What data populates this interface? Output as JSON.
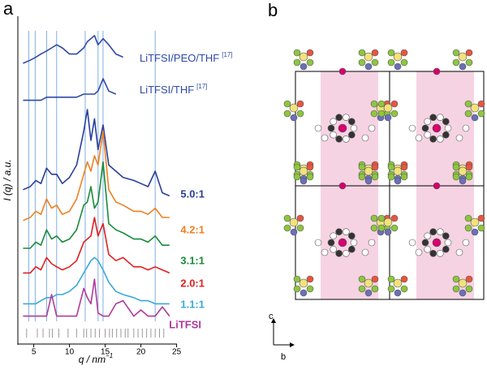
{
  "chart_data": {
    "type": "line",
    "panel_label": "a",
    "y_label": "I (q) / a.u.",
    "x_label": {
      "text": "q / nm",
      "superscript": "−1"
    },
    "x": [
      3.5,
      4.5,
      5.3,
      6,
      6.8,
      7.5,
      8.2,
      9,
      10,
      11,
      12,
      12.5,
      13,
      13.5,
      14,
      14.7,
      15.5,
      16.5,
      17.5,
      19,
      20,
      21,
      22,
      23,
      24
    ],
    "xlim": [
      3,
      25.5
    ],
    "xticks": [
      5,
      10,
      15,
      20,
      25
    ],
    "ylim": [
      0,
      100
    ],
    "reference_lines": {
      "color": "#7fb0e0",
      "x": [
        4.3,
        5.2,
        6.8,
        8.2,
        12.2,
        14,
        14.7,
        22
      ]
    },
    "reflections": {
      "color": "#999999",
      "x": [
        4,
        5.5,
        6.3,
        7.2,
        7.6,
        8.5,
        9.8,
        11,
        12,
        12.4,
        13,
        13.6,
        14.2,
        15,
        15.6,
        16,
        16.6,
        17.2,
        17.8,
        18.2,
        19,
        19.6,
        20.2,
        20.8,
        21.4,
        22,
        22.6,
        23.2
      ]
    },
    "series": [
      {
        "name": {
          "text": "LiTFSI/PEO/THF",
          "ref": "[17]"
        },
        "color": "#2f49a8",
        "values": [
          90,
          91,
          92,
          93,
          94,
          95,
          96,
          95,
          93,
          93,
          95,
          97,
          98,
          99,
          96,
          98,
          96,
          93,
          92,
          null,
          null,
          null,
          null,
          null,
          null
        ]
      },
      {
        "name": {
          "text": "LiTFSI/THF",
          "ref": "[17]"
        },
        "color": "#2f49a8",
        "values": [
          78,
          78,
          78,
          78,
          79,
          79,
          79,
          79,
          79,
          79,
          80,
          80,
          80,
          80,
          81,
          85,
          81,
          80,
          null,
          null,
          null,
          null,
          null,
          null,
          null
        ]
      },
      {
        "name": "5.0:1",
        "color": "#2a3f9a",
        "values": [
          49,
          50,
          52,
          51,
          56,
          54,
          54,
          51,
          53,
          57,
          68,
          75,
          65,
          72,
          62,
          70,
          57,
          55,
          53,
          52,
          51,
          50,
          55,
          48,
          47
        ]
      },
      {
        "name": "4.2:1",
        "color": "#f08020",
        "values": [
          39,
          40,
          42,
          41,
          46,
          43,
          44,
          41,
          42,
          46,
          54,
          58,
          55,
          60,
          57,
          68,
          49,
          45,
          44,
          42,
          42,
          41,
          43,
          40,
          40
        ]
      },
      {
        "name": "3.1:1",
        "color": "#1a8a3a",
        "values": [
          30,
          30,
          32,
          31,
          36,
          33,
          34,
          32,
          33,
          36,
          44,
          45,
          50,
          43,
          45,
          58,
          38,
          36,
          35,
          33,
          33,
          32,
          34,
          31,
          31
        ]
      },
      {
        "name": "2.0:1",
        "color": "#e02020",
        "values": [
          22,
          22,
          24,
          23,
          27,
          25,
          24,
          23,
          24,
          26,
          32,
          33,
          34,
          40,
          34,
          38,
          28,
          26,
          27,
          24,
          24,
          23,
          24,
          23,
          22
        ]
      },
      {
        "name": "1.1:1",
        "color": "#3aa8dc",
        "values": [
          12,
          12,
          12,
          13,
          14,
          14,
          15,
          15,
          16,
          18,
          22,
          24,
          26,
          27,
          26,
          23,
          19,
          16,
          15,
          14,
          13,
          13,
          12,
          12,
          12
        ]
      },
      {
        "name": "LiTFSI",
        "color": "#b03a9a",
        "values": [
          8,
          8,
          8,
          8,
          8,
          15,
          8,
          8,
          8,
          8,
          17,
          14,
          12,
          20,
          9,
          8,
          8,
          12,
          13,
          8,
          10,
          8,
          8,
          11,
          8
        ]
      }
    ]
  },
  "diagram": {
    "panel_label": "b",
    "axis_c": "c",
    "axis_b": "b"
  }
}
